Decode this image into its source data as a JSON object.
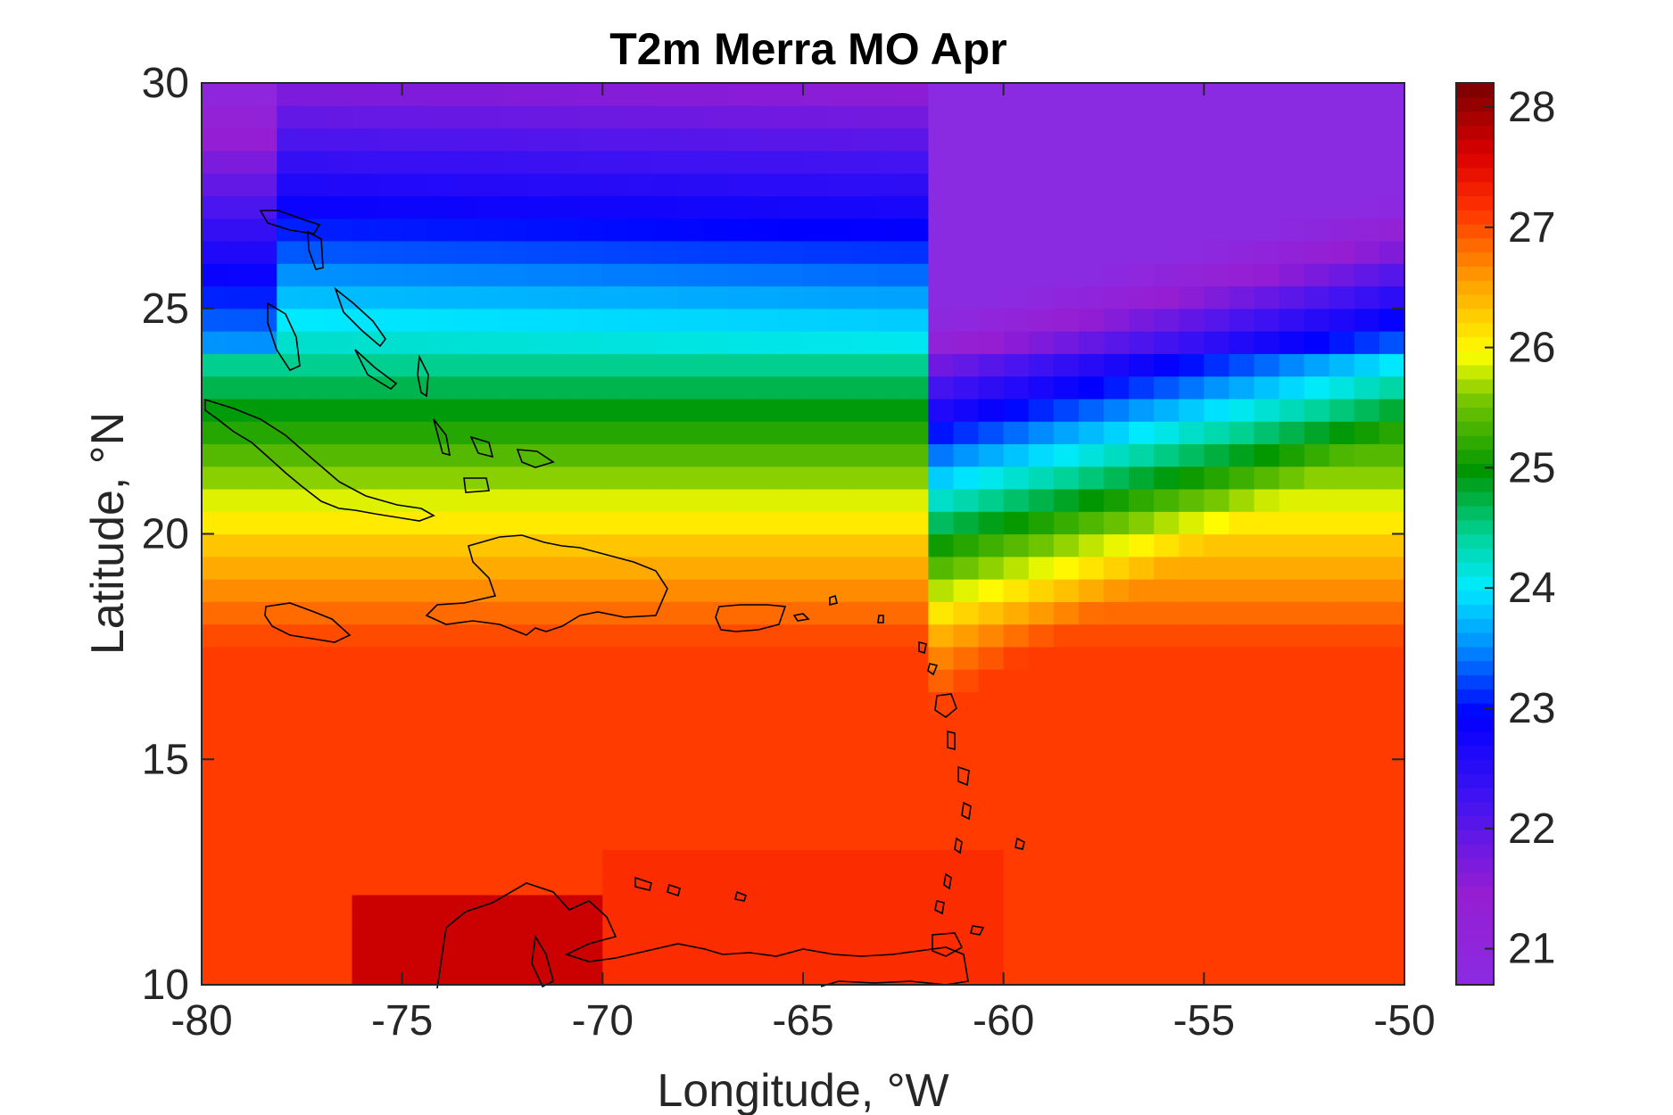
{
  "chart_data": {
    "type": "heatmap",
    "title": "T2m Merra MO Apr",
    "xlabel": "Longitude, °W",
    "ylabel": "Latitude, °N",
    "xlim": [
      -80,
      -50
    ],
    "ylim": [
      10,
      30
    ],
    "x_ticks": [
      "-80",
      "-75",
      "-70",
      "-65",
      "-60",
      "-55",
      "-50"
    ],
    "y_ticks": [
      "30",
      "25",
      "20",
      "15",
      "10"
    ],
    "colorbar": {
      "range": [
        20.7,
        28.2
      ],
      "ticks": [
        "28",
        "27",
        "26",
        "25",
        "24",
        "23",
        "22",
        "21"
      ],
      "placement": "right"
    },
    "grid_resolution": {
      "lon_step": 0.625,
      "lat_step": 0.5
    },
    "field_description": "Gridded April mean 2 m air temperature; ~21-22 at the northern edge (30N) rising to ~27-28 over the southern Caribbean Sea; coastline outlines drawn in black",
    "grid": false
  }
}
